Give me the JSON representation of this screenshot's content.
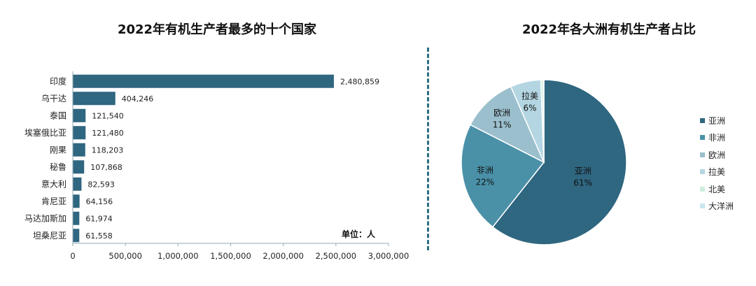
{
  "chart_data": [
    {
      "type": "bar",
      "orientation": "horizontal",
      "title": "2022年有机生产者最多的十个国家",
      "unit_label": "单位：人",
      "categories": [
        "印度",
        "乌干达",
        "泰国",
        "埃塞俄比亚",
        "刚果",
        "秘鲁",
        "意大利",
        "肯尼亚",
        "马达加斯加",
        "坦桑尼亚"
      ],
      "values": [
        2480859,
        404246,
        121540,
        121480,
        118203,
        107868,
        82593,
        64156,
        61974,
        61558
      ],
      "value_labels": [
        "2,480,859",
        "404,246",
        "121,540",
        "121,480",
        "118,203",
        "107,868",
        "82,593",
        "64,156",
        "61,974",
        "61,558"
      ],
      "xlim": [
        0,
        3000000
      ],
      "xticks": [
        0,
        500000,
        1000000,
        1500000,
        2000000,
        2500000,
        3000000
      ],
      "xtick_labels": [
        "0",
        "500,000",
        "1,000,000",
        "1,500,000",
        "2,000,000",
        "2,500,000",
        "3,000,000"
      ],
      "grid": false,
      "color": "#2f6680"
    },
    {
      "type": "pie",
      "title": "2022年各大洲有机生产者占比",
      "labels": [
        "亚洲",
        "非洲",
        "欧洲",
        "拉美",
        "北美",
        "大洋洲"
      ],
      "values": [
        61,
        22,
        11,
        6,
        0.5,
        0.1
      ],
      "data_labels": [
        "61%",
        "22%",
        "11%",
        "6%",
        "",
        ""
      ],
      "colors": [
        "#2f6680",
        "#4a91a8",
        "#9bbfcd",
        "#b4d6e2",
        "#cdeedd",
        "#c9e6f0"
      ],
      "legend_position": "right"
    }
  ]
}
